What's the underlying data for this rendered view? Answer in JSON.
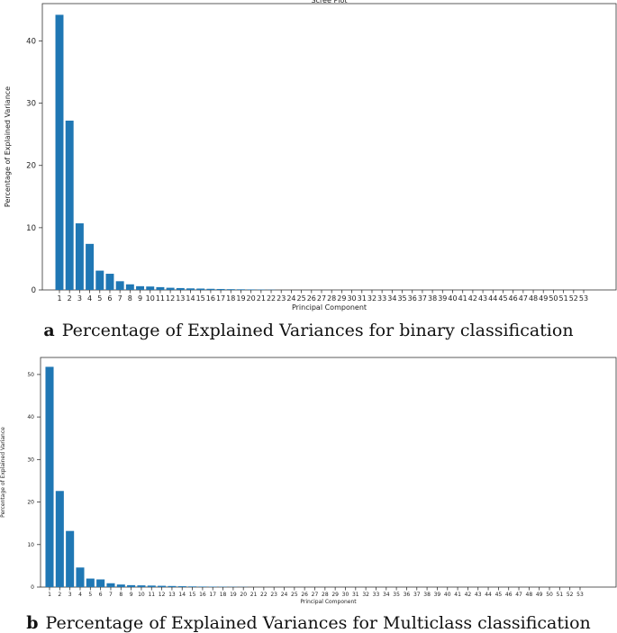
{
  "captions": {
    "a_letter": "a",
    "a_text": "Percentage of Explained Variances for binary classification",
    "b_letter": "b",
    "b_text": "Percentage of Explained Variances for Multiclass classification"
  },
  "chart_data": [
    {
      "type": "bar",
      "title": "Scree Plot",
      "xlabel": "Principal Component",
      "ylabel": "Percentage of Explained Variance",
      "color": "#1f77b4",
      "ylim": [
        0,
        46
      ],
      "yticks": [
        0,
        10,
        20,
        30,
        40
      ],
      "categories": [
        "1",
        "2",
        "3",
        "4",
        "5",
        "6",
        "7",
        "8",
        "9",
        "10",
        "11",
        "12",
        "13",
        "14",
        "15",
        "16",
        "17",
        "18",
        "19",
        "20",
        "21",
        "22",
        "23",
        "24",
        "25",
        "26",
        "27",
        "28",
        "29",
        "30",
        "31",
        "32",
        "33",
        "34",
        "35",
        "36",
        "37",
        "38",
        "39",
        "40",
        "41",
        "42",
        "43",
        "44",
        "45",
        "46",
        "47",
        "48",
        "49",
        "50",
        "51",
        "52",
        "53"
      ],
      "values": [
        44.2,
        27.2,
        10.7,
        7.4,
        3.1,
        2.6,
        1.4,
        0.9,
        0.6,
        0.55,
        0.45,
        0.35,
        0.3,
        0.25,
        0.22,
        0.18,
        0.15,
        0.12,
        0.1,
        0.08,
        0.06,
        0.04,
        0,
        0,
        0,
        0,
        0,
        0,
        0,
        0,
        0,
        0,
        0,
        0,
        0,
        0,
        0,
        0,
        0,
        0,
        0,
        0,
        0,
        0,
        0,
        0,
        0,
        0,
        0,
        0,
        0,
        0,
        0
      ]
    },
    {
      "type": "bar",
      "title": "",
      "xlabel": "Principal Component",
      "ylabel": "Percentage of Explained Variance",
      "color": "#1f77b4",
      "ylim": [
        0,
        54
      ],
      "yticks": [
        0,
        10,
        20,
        30,
        40,
        50
      ],
      "categories": [
        "1",
        "2",
        "3",
        "4",
        "5",
        "6",
        "7",
        "8",
        "9",
        "10",
        "11",
        "12",
        "13",
        "14",
        "15",
        "16",
        "17",
        "18",
        "19",
        "20",
        "21",
        "22",
        "23",
        "24",
        "25",
        "26",
        "27",
        "28",
        "29",
        "30",
        "31",
        "32",
        "33",
        "34",
        "35",
        "36",
        "37",
        "38",
        "39",
        "40",
        "41",
        "42",
        "43",
        "44",
        "45",
        "46",
        "47",
        "48",
        "49",
        "50",
        "51",
        "52",
        "53"
      ],
      "values": [
        51.8,
        22.6,
        13.2,
        4.6,
        2.0,
        1.8,
        0.9,
        0.6,
        0.45,
        0.4,
        0.35,
        0.3,
        0.25,
        0.2,
        0.15,
        0.12,
        0.1,
        0.08,
        0.06,
        0.04,
        0,
        0,
        0,
        0,
        0,
        0,
        0,
        0,
        0,
        0,
        0,
        0,
        0,
        0,
        0,
        0,
        0,
        0,
        0,
        0,
        0,
        0,
        0,
        0,
        0,
        0,
        0,
        0,
        0,
        0,
        0,
        0,
        0
      ]
    }
  ]
}
